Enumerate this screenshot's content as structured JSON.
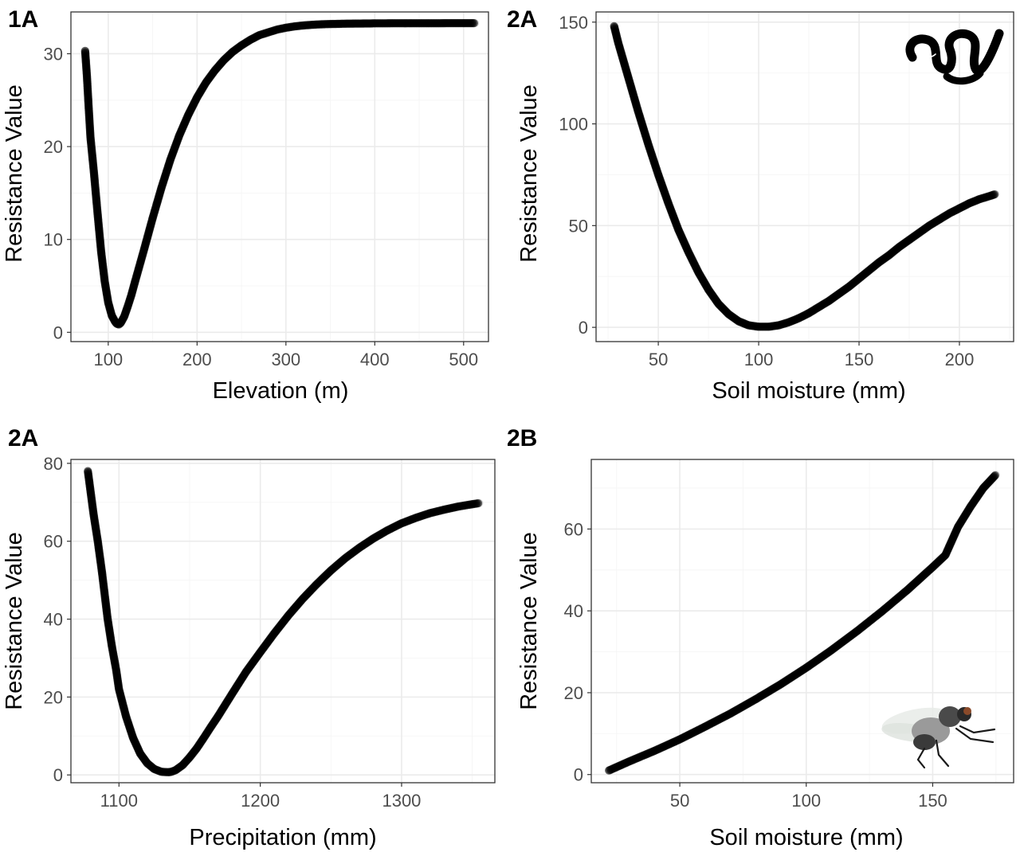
{
  "chart_data": [
    {
      "type": "scatter",
      "panel_label": "1A",
      "xlabel": "Elevation (m)",
      "ylabel": "Resistance Value",
      "xlim": [
        58,
        528
      ],
      "ylim": [
        -1,
        34.5
      ],
      "xticks": [
        100,
        200,
        300,
        400,
        500
      ],
      "yticks": [
        0,
        10,
        20,
        30
      ],
      "grid": true,
      "series": [
        {
          "x": [
            74,
            76,
            78,
            80,
            84,
            88,
            92,
            96,
            100,
            104,
            108,
            110,
            112,
            114,
            118,
            122,
            126,
            130,
            140,
            150,
            160,
            170,
            180,
            190,
            200,
            210,
            220,
            230,
            240,
            250,
            260,
            270,
            280,
            290,
            300,
            310,
            320,
            330,
            340,
            350,
            360,
            370,
            380,
            390,
            400,
            420,
            440,
            460,
            480,
            500,
            513
          ],
          "y": [
            30.3,
            27.6,
            24.2,
            21.0,
            17.1,
            12.8,
            8.7,
            5.5,
            3.2,
            1.8,
            1.1,
            0.9,
            0.85,
            1.0,
            1.7,
            2.8,
            4.0,
            5.4,
            8.8,
            12.3,
            15.6,
            18.6,
            21.2,
            23.4,
            25.3,
            26.9,
            28.2,
            29.3,
            30.2,
            30.9,
            31.5,
            32.0,
            32.3,
            32.6,
            32.8,
            32.95,
            33.05,
            33.12,
            33.17,
            33.2,
            33.22,
            33.24,
            33.25,
            33.26,
            33.27,
            33.28,
            33.28,
            33.28,
            33.29,
            33.29,
            33.29
          ]
        }
      ]
    },
    {
      "type": "scatter",
      "panel_label": "2A",
      "xlabel": "Soil moisture (mm)",
      "ylabel": "Resistance Value",
      "xlim": [
        19,
        227
      ],
      "ylim": [
        -7,
        155
      ],
      "xticks": [
        50,
        100,
        150,
        200
      ],
      "yticks": [
        0,
        50,
        100,
        150
      ],
      "grid": true,
      "icon": "worm-icon",
      "series": [
        {
          "x": [
            28,
            30,
            35,
            40,
            45,
            50,
            55,
            60,
            65,
            70,
            75,
            80,
            85,
            90,
            95,
            100,
            105,
            110,
            115,
            120,
            125,
            130,
            135,
            140,
            145,
            150,
            155,
            160,
            165,
            170,
            175,
            180,
            185,
            190,
            195,
            200,
            205,
            210,
            215,
            218
          ],
          "y": [
            148,
            140,
            123,
            106,
            90,
            75,
            61,
            48,
            37,
            27,
            18.5,
            11.5,
            6.5,
            3,
            1,
            0.3,
            0.3,
            1,
            2.5,
            4.5,
            7,
            10,
            13,
            16.5,
            20,
            24,
            28,
            32,
            35.5,
            39.5,
            43,
            46.5,
            50,
            53,
            56,
            58.5,
            61,
            63,
            64.5,
            65.5
          ]
        }
      ]
    },
    {
      "type": "scatter",
      "panel_label": "2A",
      "xlabel": "Precipitation (mm)",
      "ylabel": "Resistance Value",
      "xlim": [
        1066,
        1366
      ],
      "ylim": [
        -2,
        81
      ],
      "xticks": [
        1100,
        1200,
        1300
      ],
      "yticks": [
        0,
        20,
        40,
        60,
        80
      ],
      "grid": true,
      "series": [
        {
          "x": [
            1078,
            1080,
            1082,
            1085,
            1088,
            1090,
            1092,
            1095,
            1098,
            1100,
            1105,
            1110,
            1115,
            1120,
            1125,
            1130,
            1135,
            1137,
            1140,
            1145,
            1150,
            1155,
            1160,
            1165,
            1170,
            1180,
            1190,
            1200,
            1210,
            1220,
            1230,
            1240,
            1250,
            1260,
            1270,
            1280,
            1290,
            1300,
            1310,
            1320,
            1330,
            1340,
            1350,
            1355
          ],
          "y": [
            78,
            72.5,
            67,
            60,
            52,
            46,
            40,
            33,
            27,
            22,
            15,
            9.5,
            5.5,
            3,
            1.5,
            0.8,
            0.7,
            0.8,
            1.2,
            2.5,
            4.5,
            6.8,
            9.5,
            12.3,
            15,
            20.8,
            26.5,
            31.5,
            36.4,
            41,
            45.2,
            49,
            52.5,
            55.6,
            58.3,
            60.7,
            62.8,
            64.6,
            66,
            67.2,
            68.1,
            68.9,
            69.5,
            69.8
          ]
        }
      ]
    },
    {
      "type": "scatter",
      "panel_label": "2B",
      "xlabel": "Soil moisture (mm)",
      "ylabel": "Resistance Value",
      "xlim": [
        15,
        182
      ],
      "ylim": [
        -2,
        77
      ],
      "xticks": [
        50,
        100,
        150
      ],
      "yticks": [
        0,
        20,
        40,
        60
      ],
      "grid": true,
      "icon": "fly-icon",
      "series": [
        {
          "x": [
            22,
            30,
            40,
            50,
            60,
            70,
            80,
            90,
            100,
            110,
            120,
            130,
            140,
            150,
            155,
            160,
            165,
            170,
            175
          ],
          "y": [
            1,
            3.2,
            5.8,
            8.6,
            11.7,
            14.9,
            18.4,
            22.1,
            26.1,
            30.4,
            35,
            39.9,
            45.1,
            50.7,
            53.6,
            60.5,
            65.5,
            70,
            73.3
          ]
        }
      ]
    }
  ]
}
